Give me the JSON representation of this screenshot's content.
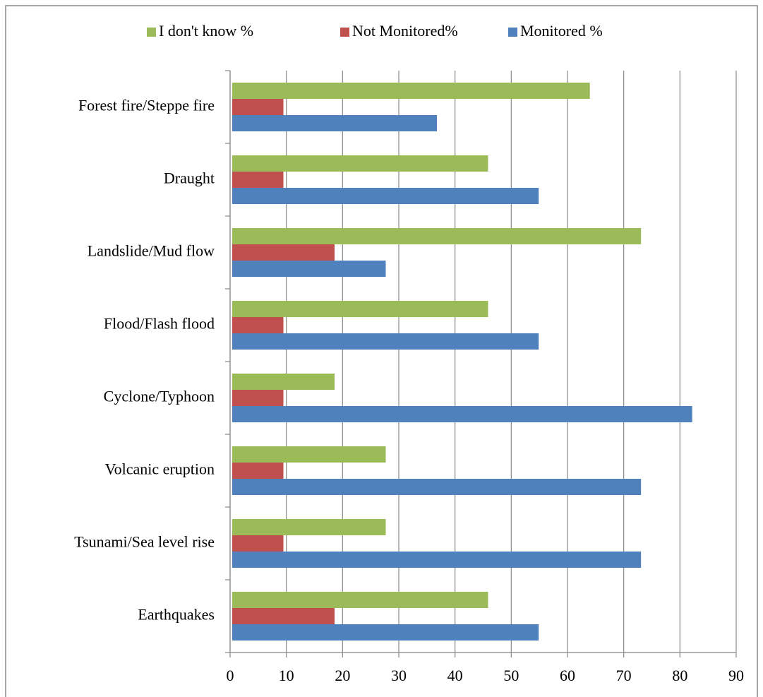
{
  "chart_data": {
    "type": "hbar",
    "categories": [
      "Earthquakes",
      "Tsunami/Sea level rise",
      "Volcanic eruption",
      "Cyclone/Typhoon",
      "Flood/Flash flood",
      "Landslide/Mud flow",
      "Draught",
      "Forest fire/Steppe fire"
    ],
    "series": [
      {
        "name": "Monitored %",
        "color": "#4f81bd",
        "values": [
          54.5,
          72.7,
          72.7,
          81.8,
          54.5,
          27.3,
          54.5,
          36.4
        ]
      },
      {
        "name": "Not Monitored%",
        "color": "#c0504d",
        "values": [
          18.2,
          9.1,
          9.1,
          9.1,
          9.1,
          18.2,
          9.1,
          9.1
        ]
      },
      {
        "name": "I don't know %",
        "color": "#9bbb59",
        "values": [
          45.5,
          27.3,
          27.3,
          18.2,
          45.5,
          72.7,
          45.5,
          63.6
        ]
      }
    ],
    "xlim": [
      0,
      90
    ],
    "xticks": [
      0,
      10,
      20,
      30,
      40,
      50,
      60,
      70,
      80,
      90
    ],
    "grid": true,
    "legend": "top"
  }
}
